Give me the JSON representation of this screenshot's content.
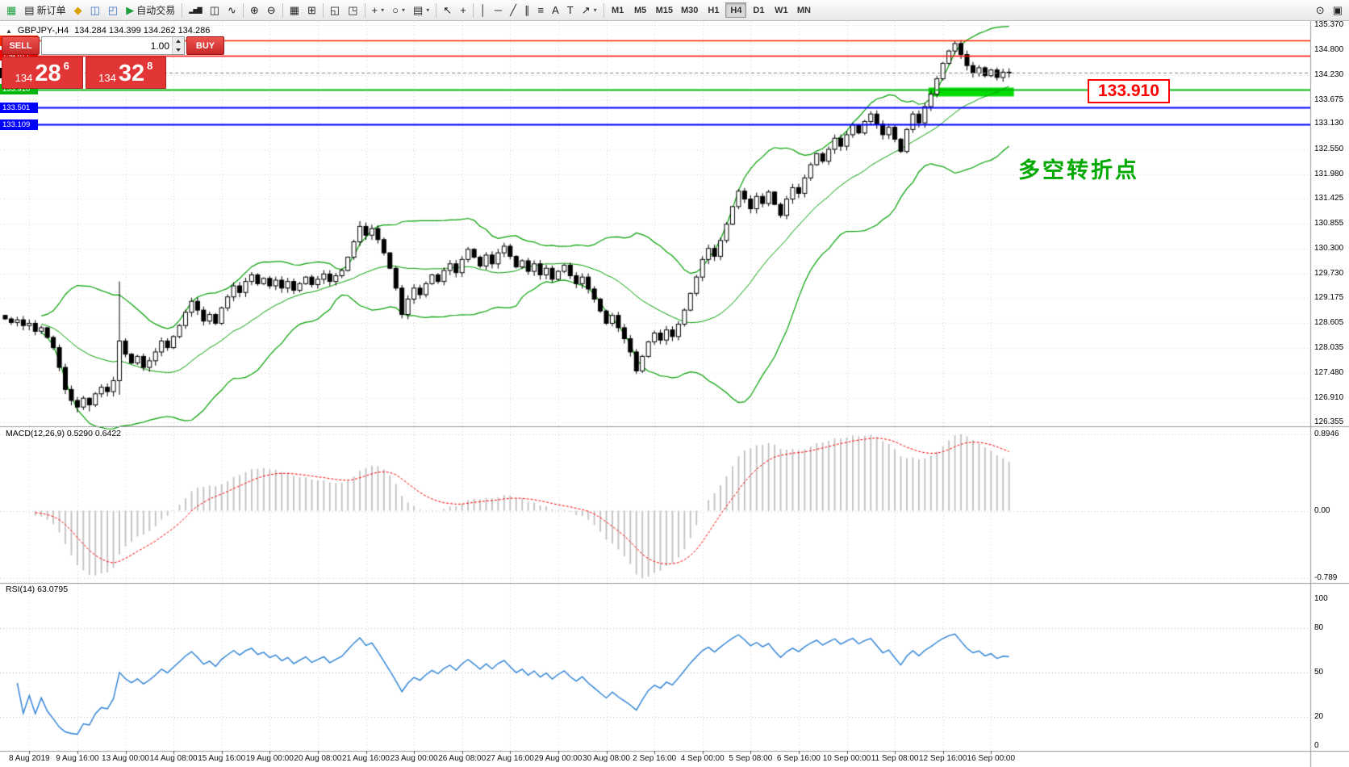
{
  "toolbar": {
    "dropdown_glyph": "▾",
    "timeframes": [
      "M1",
      "M5",
      "M15",
      "M30",
      "H1",
      "H4",
      "D1",
      "W1",
      "MN"
    ],
    "active_timeframe": "H4",
    "groups": [
      {
        "items": [
          {
            "name": "chart-mini-icon",
            "glyph": "▦",
            "tint": "green"
          },
          {
            "name": "new-order-button",
            "glyph": "▤",
            "label": "新订单"
          },
          {
            "name": "indicators-lamp-icon",
            "glyph": "◆",
            "tint": "yellow"
          },
          {
            "name": "market-window-icon",
            "glyph": "◫",
            "tint": "blue"
          },
          {
            "name": "profile-window-icon",
            "glyph": "◰",
            "tint": "blue"
          },
          {
            "name": "auto-trading-button",
            "glyph": "▶",
            "label": "自动交易",
            "tint": "green"
          }
        ]
      },
      {
        "items": [
          {
            "name": "bar-chart-icon",
            "glyph": "▂▅▇",
            "mini": true
          },
          {
            "name": "candle-chart-icon",
            "glyph": "◫"
          },
          {
            "name": "line-chart-icon",
            "glyph": "∿"
          }
        ]
      },
      {
        "items": [
          {
            "name": "zoom-in-icon",
            "glyph": "⊕"
          },
          {
            "name": "zoom-out-icon",
            "glyph": "⊖"
          }
        ]
      },
      {
        "items": [
          {
            "name": "grid-icon",
            "glyph": "▦"
          },
          {
            "name": "tile-windows-icon",
            "glyph": "⊞"
          }
        ]
      },
      {
        "items": [
          {
            "name": "new-chart-window-icon",
            "glyph": "◱"
          },
          {
            "name": "cascade-windows-icon",
            "glyph": "◳"
          }
        ]
      },
      {
        "items": [
          {
            "name": "add-indicator-button",
            "glyph": "+",
            "dropdown": true
          },
          {
            "name": "period-menu-button",
            "glyph": "○",
            "dropdown": true
          },
          {
            "name": "template-menu-button",
            "glyph": "▤",
            "dropdown": true
          }
        ]
      },
      {
        "items": [
          {
            "name": "cursor-icon",
            "glyph": "↖"
          },
          {
            "name": "crosshair-icon",
            "glyph": "+"
          }
        ]
      },
      {
        "items": [
          {
            "name": "vertical-line-icon",
            "glyph": "│"
          },
          {
            "name": "horizontal-line-icon",
            "glyph": "─"
          },
          {
            "name": "trendline-icon",
            "glyph": "╱"
          },
          {
            "name": "channel-icon",
            "glyph": "∥"
          },
          {
            "name": "fibonacci-icon",
            "glyph": "≡"
          },
          {
            "name": "text-icon",
            "glyph": "A"
          },
          {
            "name": "label-icon",
            "glyph": "T"
          },
          {
            "name": "shapes-icon",
            "glyph": "↗",
            "dropdown": true
          }
        ]
      },
      {
        "type": "timeframes"
      },
      {
        "type": "spacer"
      },
      {
        "items": [
          {
            "name": "search-icon",
            "glyph": "⊙"
          },
          {
            "name": "toolbox-window-icon",
            "glyph": "▣"
          }
        ]
      }
    ]
  },
  "chart": {
    "one_click_glyph": "▲",
    "symbol_label": "GBPJPY-,H4",
    "ohlc_label": "134.284 134.399 134.262 134.286",
    "axis_min": 126.355,
    "axis_max": 135.37,
    "price_axis_ticks": [
      "135.370",
      "134.800",
      "134.230",
      "133.675",
      "133.130",
      "132.550",
      "131.980",
      "131.425",
      "130.855",
      "130.300",
      "129.730",
      "129.175",
      "128.605",
      "128.035",
      "127.480",
      "126.910",
      "126.355"
    ],
    "levels": [
      {
        "label": "135.013",
        "price": 135.013,
        "color": "#ff2600",
        "width": 1.6
      },
      {
        "label": "134.677",
        "price": 134.677,
        "color": "#ff0000",
        "width": 1.6
      },
      {
        "label": "133.910",
        "price": 133.91,
        "color": "#00b80c",
        "width": 2
      },
      {
        "label": "133.501",
        "price": 133.501,
        "color": "#0000ff",
        "width": 2
      },
      {
        "label": "133.109",
        "price": 133.109,
        "color": "#0000ff",
        "width": 2
      }
    ],
    "current_price": {
      "label": "134.286",
      "price": 134.286,
      "color": "#000000"
    },
    "zone": {
      "price_top": 133.95,
      "price_bottom": 133.75,
      "start_index": 154,
      "color": "#00dd00"
    },
    "callout": {
      "text": "133.910",
      "color": "#ff0000"
    },
    "note": {
      "text": "多空转折点",
      "color": "#00a800"
    },
    "grid_color": "#d4d4d4",
    "candle_colors": {
      "up_fill": "#ffffff",
      "down_fill": "#000000",
      "outline": "#000000"
    },
    "bollinger": {
      "period": 20,
      "deviation": 2,
      "color": "#00a000"
    },
    "candles": {
      "first_open": 128.78,
      "closes": [
        128.7,
        128.62,
        128.68,
        128.55,
        128.6,
        128.42,
        128.5,
        128.28,
        128.05,
        127.6,
        127.1,
        126.85,
        126.7,
        126.9,
        126.75,
        127.0,
        127.15,
        127.05,
        127.3,
        128.2,
        127.9,
        127.7,
        127.85,
        127.6,
        127.75,
        127.95,
        128.2,
        128.05,
        128.3,
        128.55,
        128.85,
        129.1,
        128.9,
        128.65,
        128.8,
        128.6,
        128.95,
        129.2,
        129.45,
        129.3,
        129.55,
        129.7,
        129.5,
        129.62,
        129.45,
        129.58,
        129.4,
        129.55,
        129.35,
        129.5,
        129.65,
        129.48,
        129.6,
        129.72,
        129.55,
        129.68,
        129.8,
        130.1,
        130.45,
        130.8,
        130.6,
        130.75,
        130.5,
        130.2,
        129.85,
        129.4,
        128.8,
        129.15,
        129.4,
        129.25,
        129.5,
        129.7,
        129.55,
        129.8,
        129.95,
        129.75,
        130.05,
        130.28,
        130.1,
        129.9,
        130.15,
        129.95,
        130.2,
        130.35,
        130.12,
        129.88,
        130.02,
        129.78,
        129.95,
        129.7,
        129.85,
        129.6,
        129.78,
        129.92,
        129.68,
        129.5,
        129.65,
        129.38,
        129.15,
        128.88,
        128.6,
        128.78,
        128.5,
        128.25,
        127.95,
        127.52,
        127.85,
        128.18,
        128.38,
        128.22,
        128.45,
        128.3,
        128.58,
        128.9,
        129.28,
        129.65,
        130.05,
        130.3,
        130.12,
        130.48,
        130.85,
        131.25,
        131.6,
        131.42,
        131.2,
        131.48,
        131.32,
        131.58,
        131.3,
        131.05,
        131.42,
        131.68,
        131.55,
        131.9,
        132.2,
        132.45,
        132.28,
        132.55,
        132.8,
        132.62,
        132.88,
        133.1,
        132.92,
        133.18,
        133.35,
        133.12,
        132.88,
        133.05,
        132.78,
        132.5,
        133.0,
        133.35,
        133.15,
        133.52,
        133.8,
        134.15,
        134.5,
        134.78,
        134.95,
        134.7,
        134.45,
        134.28,
        134.4,
        134.22,
        134.35,
        134.18,
        134.3,
        134.286
      ],
      "wick_overrides": {
        "12": {
          "low": 126.58
        },
        "14": {
          "low": 126.6
        },
        "19": {
          "high": 129.55,
          "low": 126.98
        },
        "59": {
          "high": 130.92
        },
        "105": {
          "low": 127.45
        },
        "158": {
          "high": 135.013
        }
      }
    },
    "date_labels": [
      "8 Aug 2019",
      "9 Aug 16:00",
      "13 Aug 00:00",
      "14 Aug 08:00",
      "15 Aug 16:00",
      "19 Aug 00:00",
      "20 Aug 08:00",
      "21 Aug 16:00",
      "23 Aug 00:00",
      "26 Aug 08:00",
      "27 Aug 16:00",
      "29 Aug 00:00",
      "30 Aug 08:00",
      "2 Sep 16:00",
      "4 Sep 00:00",
      "5 Sep 08:00",
      "6 Sep 16:00",
      "10 Sep 00:00",
      "11 Sep 08:00",
      "12 Sep 16:00",
      "16 Sep 00:00"
    ]
  },
  "macd": {
    "name_label": "MACD(12,26,9)",
    "values_label": "0.5290 0.6422",
    "axis": [
      "0.8946",
      "0.00",
      "-0.789"
    ],
    "histogram_color": "#c0c0c0",
    "signal_color": "#ff0000"
  },
  "rsi": {
    "name_label": "RSI(14)",
    "value_label": "63.0795",
    "axis": [
      "100",
      "80",
      "50",
      "20",
      "0"
    ],
    "levels": [
      80,
      50,
      20
    ],
    "line_color": "#2a80d6"
  },
  "trade_panel": {
    "sell_label": "SELL",
    "buy_label": "BUY",
    "volume": "1.00",
    "sell_small": "134",
    "sell_big": "28",
    "sell_sup": "6",
    "buy_small": "134",
    "buy_big": "32",
    "buy_sup": "8"
  }
}
